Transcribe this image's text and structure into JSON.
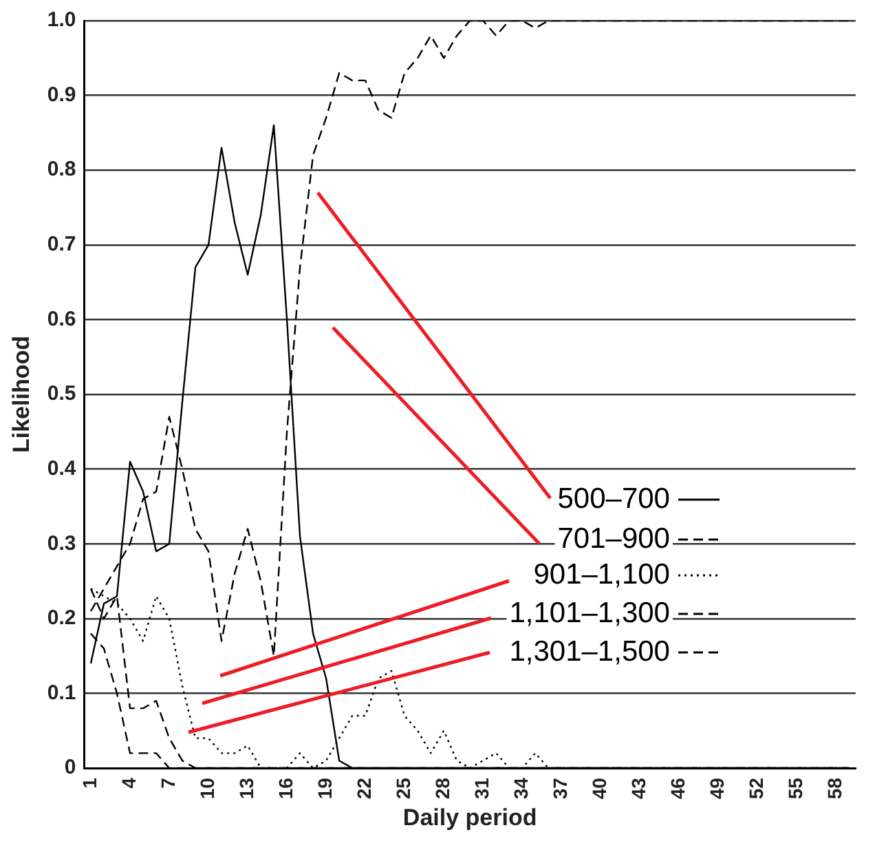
{
  "chart_data": {
    "type": "line",
    "xlabel": "Daily period",
    "ylabel": "Likelihood",
    "categories": [
      "1",
      null,
      null,
      "4",
      null,
      null,
      "7",
      null,
      null,
      "10",
      null,
      null,
      "13",
      null,
      null,
      "16",
      null,
      null,
      "19",
      null,
      null,
      "22",
      null,
      null,
      "25",
      null,
      null,
      "28",
      null,
      null,
      "31",
      null,
      null,
      "34",
      null,
      null,
      "37",
      null,
      null,
      "40",
      null,
      null,
      "43",
      null,
      null,
      "46",
      null,
      null,
      "49",
      null,
      null,
      "52",
      null,
      null,
      "55",
      null,
      null,
      "58",
      null
    ],
    "ylim": [
      0,
      1
    ],
    "yticks": [
      0,
      0.1,
      0.2,
      0.3,
      0.4,
      0.5,
      0.6,
      0.7,
      0.8,
      0.9,
      {
        "value": 1,
        "label": "1.0"
      }
    ],
    "grid": "y",
    "legend": "right",
    "marker": "none",
    "series": [
      {
        "name": "500–700",
        "color": "#000000",
        "line_style": "solid",
        "values": [
          0.14,
          0.22,
          0.23,
          0.41,
          0.37,
          0.29,
          0.3,
          0.49,
          0.67,
          0.7,
          0.83,
          0.73,
          0.66,
          0.74,
          0.86,
          0.6,
          0.31,
          0.18,
          0.12,
          0.01,
          0,
          0,
          0,
          0,
          0,
          0,
          0,
          0,
          0,
          0,
          0,
          0,
          0,
          0,
          0,
          0,
          0,
          0,
          0,
          0,
          0,
          0,
          0,
          0,
          0,
          0,
          0,
          0,
          0,
          0,
          0,
          0,
          0,
          0,
          0,
          0,
          0,
          0,
          0
        ]
      },
      {
        "name": "701–900",
        "color": "#000000",
        "line_style": "dashed",
        "values": [
          0.21,
          0.24,
          0.27,
          0.3,
          0.36,
          0.37,
          0.47,
          0.4,
          0.32,
          0.29,
          0.17,
          0.26,
          0.32,
          0.25,
          0.15,
          0.45,
          0.67,
          0.82,
          0.87,
          0.93,
          0.92,
          0.92,
          0.88,
          0.87,
          0.93,
          0.95,
          0.98,
          0.95,
          0.98,
          1,
          1,
          0.98,
          1,
          1,
          0.99,
          1,
          1,
          1,
          1,
          1,
          1,
          1,
          1,
          1,
          1,
          1,
          1,
          1,
          1,
          1,
          1,
          1,
          1,
          1,
          1,
          1,
          1,
          1,
          1
        ]
      },
      {
        "name": "901–1,100",
        "color": "#000000",
        "line_style": "dotted",
        "values": [
          0.24,
          0.23,
          0.22,
          0.2,
          0.17,
          0.23,
          0.2,
          0.11,
          0.04,
          0.04,
          0.02,
          0.02,
          0.03,
          0,
          0,
          0,
          0.02,
          0,
          0.01,
          0.04,
          0.07,
          0.07,
          0.12,
          0.13,
          0.07,
          0.05,
          0.02,
          0.05,
          0.01,
          0,
          0.01,
          0.02,
          0,
          0,
          0.02,
          0,
          0,
          0,
          0,
          0,
          0,
          0,
          0,
          0,
          0,
          0,
          0,
          0,
          0,
          0,
          0,
          0,
          0,
          0,
          0,
          0,
          0,
          0,
          0
        ]
      },
      {
        "name": "1,101–1,300",
        "color": "#000000",
        "line_style": "dashed",
        "values": [
          0.24,
          0.2,
          0.23,
          0.08,
          0.08,
          0.09,
          0.04,
          0.01,
          0,
          0,
          0,
          0,
          0,
          0,
          0,
          0,
          0,
          0,
          0,
          0,
          0,
          0,
          0,
          0,
          0,
          0,
          0,
          0,
          0,
          0,
          0,
          0,
          0,
          0,
          0,
          0,
          0,
          0,
          0,
          0,
          0,
          0,
          0,
          0,
          0,
          0,
          0,
          0,
          0,
          0,
          0,
          0,
          0,
          0,
          0,
          0,
          0,
          0,
          0
        ]
      },
      {
        "name": "1,301–1,500",
        "color": "#000000",
        "line_style": "dashed",
        "values": [
          0.18,
          0.16,
          0.1,
          0.02,
          0.02,
          0.02,
          0,
          0,
          0,
          0,
          0,
          0,
          0,
          0,
          0,
          0,
          0,
          0,
          0,
          0,
          0,
          0,
          0,
          0,
          0,
          0,
          0,
          0,
          0,
          0,
          0,
          0,
          0,
          0,
          0,
          0,
          0,
          0,
          0,
          0,
          0,
          0,
          0,
          0,
          0,
          0,
          0,
          0,
          0,
          0,
          0,
          0,
          0,
          0,
          0,
          0,
          0,
          0,
          0
        ]
      }
    ]
  }
}
